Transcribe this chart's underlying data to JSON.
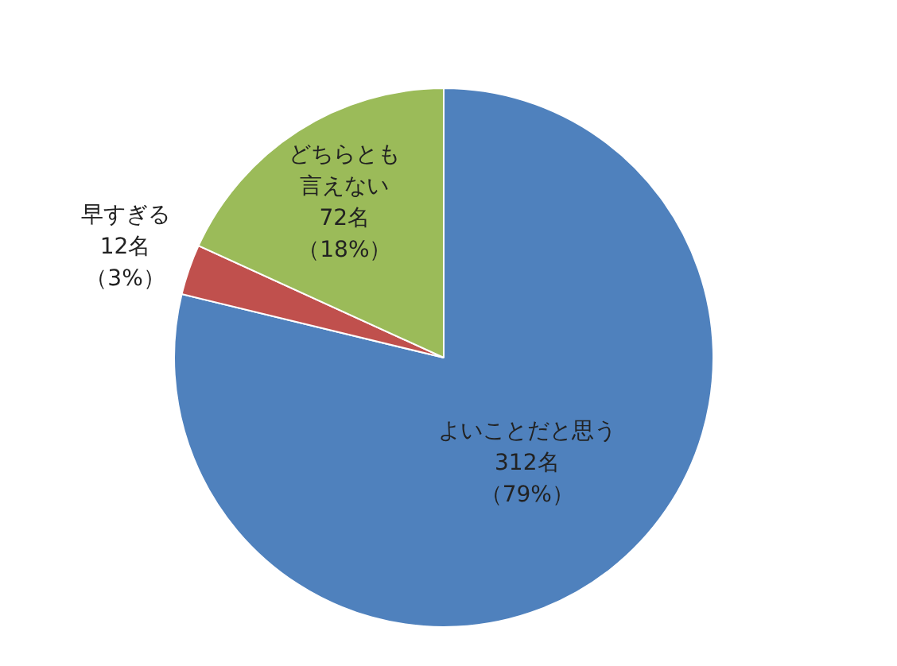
{
  "chart_data": {
    "type": "pie",
    "categories": [
      "よいことだと思う",
      "早すぎる",
      "どちらとも言えない"
    ],
    "values": [
      312,
      12,
      72
    ],
    "colors": [
      "#4f81bd",
      "#c0504d",
      "#9bbb59"
    ],
    "value_labels": [
      "312名（79%）",
      "12名（3%）",
      "72名（18%）"
    ],
    "legend": false
  }
}
